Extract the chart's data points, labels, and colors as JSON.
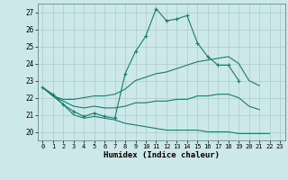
{
  "xlabel": "Humidex (Indice chaleur)",
  "x_hours": [
    0,
    1,
    2,
    3,
    4,
    5,
    6,
    7,
    8,
    9,
    10,
    11,
    12,
    13,
    14,
    15,
    16,
    17,
    18,
    19,
    20,
    21,
    22,
    23
  ],
  "line_main": [
    22.6,
    22.2,
    21.6,
    21.2,
    20.9,
    21.1,
    20.9,
    20.8,
    23.4,
    24.7,
    25.6,
    27.2,
    26.5,
    26.6,
    26.8,
    25.2,
    24.4,
    23.9,
    23.9,
    23.0,
    null,
    null,
    null,
    null
  ],
  "line_upper": [
    22.6,
    22.1,
    21.9,
    21.9,
    22.0,
    22.1,
    22.1,
    22.2,
    22.5,
    23.0,
    23.2,
    23.4,
    23.5,
    23.7,
    23.9,
    24.1,
    24.2,
    24.3,
    24.4,
    24.0,
    23.0,
    22.7,
    null,
    null
  ],
  "line_lower": [
    22.6,
    22.1,
    21.6,
    21.0,
    20.8,
    20.9,
    20.8,
    20.7,
    20.5,
    20.4,
    20.3,
    20.2,
    20.1,
    20.1,
    20.1,
    20.1,
    20.0,
    20.0,
    20.0,
    19.9,
    19.9,
    19.9,
    19.9,
    null
  ],
  "line_mid": [
    22.6,
    22.1,
    21.8,
    21.5,
    21.4,
    21.5,
    21.4,
    21.4,
    21.5,
    21.7,
    21.7,
    21.8,
    21.8,
    21.9,
    21.9,
    22.1,
    22.1,
    22.2,
    22.2,
    22.0,
    21.5,
    21.3,
    null,
    null
  ],
  "color": "#1a7a6e",
  "bg_color": "#cce8e8",
  "grid_color": "#a8cccc",
  "ylim": [
    19.5,
    27.5
  ],
  "yticks": [
    20,
    21,
    22,
    23,
    24,
    25,
    26,
    27
  ],
  "xticks": [
    0,
    1,
    2,
    3,
    4,
    5,
    6,
    7,
    8,
    9,
    10,
    11,
    12,
    13,
    14,
    15,
    16,
    17,
    18,
    19,
    20,
    21,
    22,
    23
  ]
}
